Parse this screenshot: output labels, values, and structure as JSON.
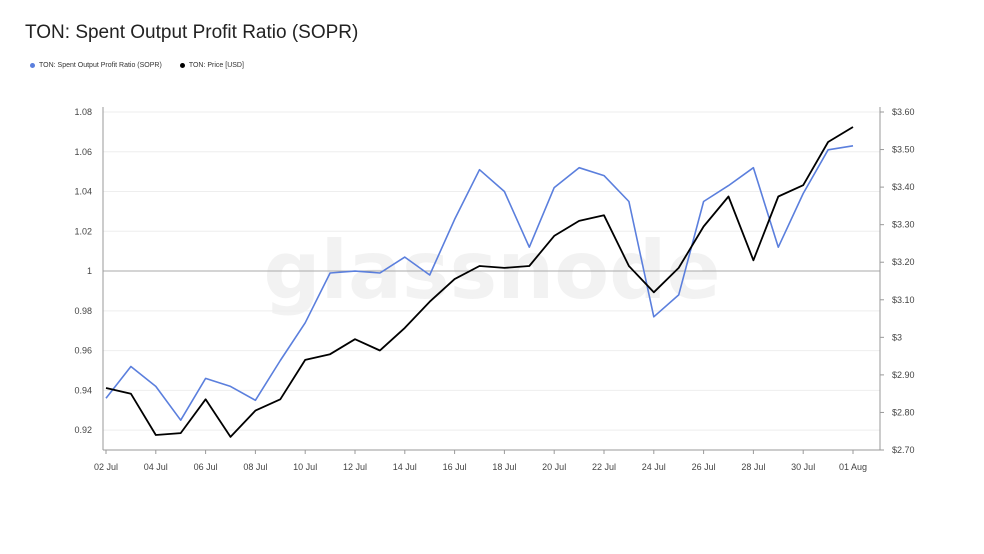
{
  "title": "TON: Spent Output Profit Ratio (SOPR)",
  "watermark": "glassnode",
  "colors": {
    "sopr": "#5b7fdd",
    "price": "#000000",
    "grid": "#eeeeee",
    "axis": "#999999",
    "baseline": "#aaaaaa"
  },
  "legend": [
    {
      "label": "TON: Spent Output Profit Ratio (SOPR)",
      "color": "#5b7fdd"
    },
    {
      "label": "TON: Price [USD]",
      "color": "#000000"
    }
  ],
  "chart_data": {
    "type": "line",
    "x": [
      "02 Jul",
      "03 Jul",
      "04 Jul",
      "05 Jul",
      "06 Jul",
      "07 Jul",
      "08 Jul",
      "09 Jul",
      "10 Jul",
      "11 Jul",
      "12 Jul",
      "13 Jul",
      "14 Jul",
      "15 Jul",
      "16 Jul",
      "17 Jul",
      "18 Jul",
      "19 Jul",
      "20 Jul",
      "21 Jul",
      "22 Jul",
      "23 Jul",
      "24 Jul",
      "25 Jul",
      "26 Jul",
      "27 Jul",
      "28 Jul",
      "29 Jul",
      "30 Jul",
      "31 Jul",
      "01 Aug"
    ],
    "x_tick_labels": [
      "02 Jul",
      "04 Jul",
      "06 Jul",
      "08 Jul",
      "10 Jul",
      "12 Jul",
      "14 Jul",
      "16 Jul",
      "18 Jul",
      "20 Jul",
      "22 Jul",
      "24 Jul",
      "26 Jul",
      "28 Jul",
      "30 Jul",
      "01 Aug"
    ],
    "series": [
      {
        "name": "TON: Spent Output Profit Ratio (SOPR)",
        "axis": "left",
        "values": [
          0.936,
          0.952,
          0.942,
          0.925,
          0.946,
          0.942,
          0.935,
          0.955,
          0.974,
          0.999,
          1.0,
          0.999,
          1.007,
          0.998,
          1.026,
          1.051,
          1.04,
          1.012,
          1.042,
          1.052,
          1.048,
          1.035,
          0.977,
          0.988,
          1.035,
          1.043,
          1.052,
          1.012,
          1.039,
          1.061,
          1.063
        ]
      },
      {
        "name": "TON: Price [USD]",
        "axis": "right",
        "values": [
          2.865,
          2.85,
          2.74,
          2.745,
          2.835,
          2.735,
          2.805,
          2.835,
          2.94,
          2.955,
          2.995,
          2.965,
          3.025,
          3.095,
          3.155,
          3.19,
          3.185,
          3.19,
          3.27,
          3.31,
          3.325,
          3.19,
          3.12,
          3.185,
          3.295,
          3.375,
          3.205,
          3.375,
          3.405,
          3.52,
          3.56
        ]
      }
    ],
    "y_left": {
      "ticks": [
        "0.92",
        "0.94",
        "0.96",
        "0.98",
        "1",
        "1.02",
        "1.04",
        "1.06",
        "1.08"
      ],
      "tick_values": [
        0.92,
        0.94,
        0.96,
        0.98,
        1.0,
        1.02,
        1.04,
        1.06,
        1.08
      ],
      "range": [
        0.91,
        1.08
      ]
    },
    "y_right": {
      "ticks": [
        "$2.70",
        "$2.80",
        "$2.90",
        "$3",
        "$3.10",
        "$3.20",
        "$3.30",
        "$3.40",
        "$3.50",
        "$3.60"
      ],
      "tick_values": [
        2.7,
        2.8,
        2.9,
        3.0,
        3.1,
        3.2,
        3.3,
        3.4,
        3.5,
        3.6
      ],
      "range": [
        2.7,
        3.6
      ]
    },
    "reference_line": 1,
    "grid": true,
    "legend_position": "top-left"
  }
}
